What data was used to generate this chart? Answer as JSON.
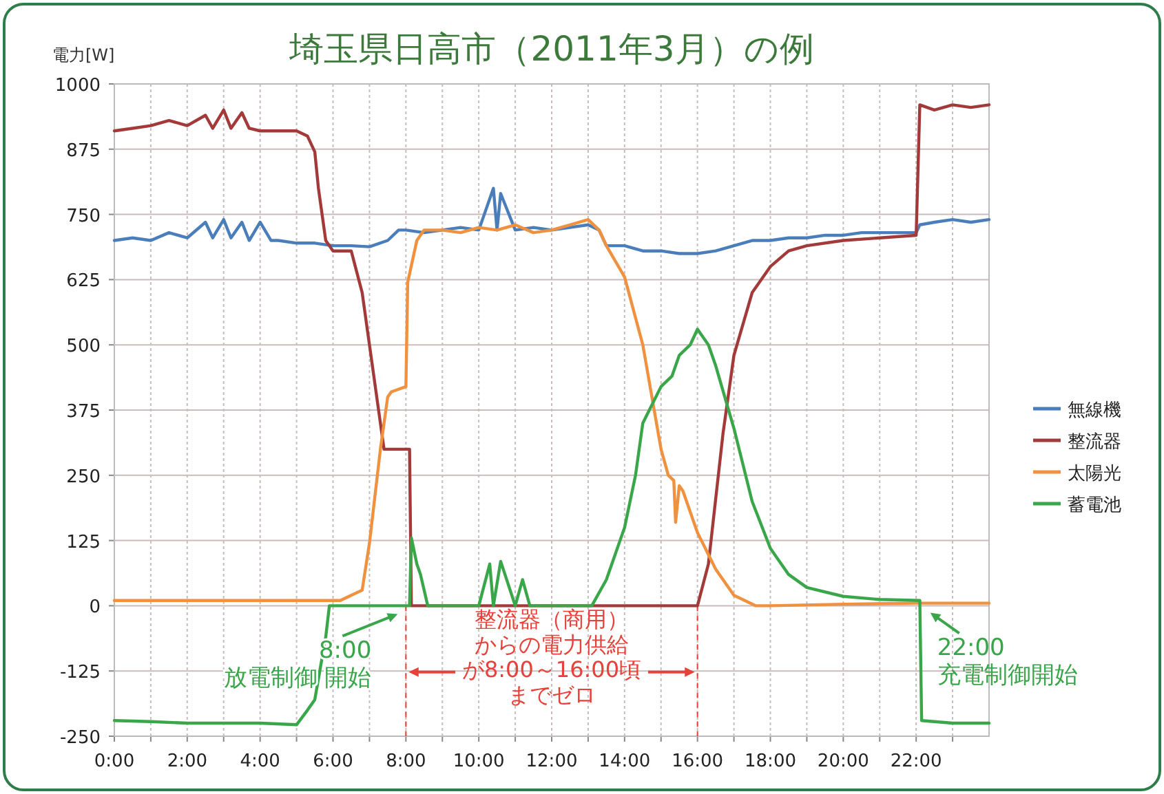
{
  "chart_data": {
    "type": "line",
    "title": "埼玉県日高市（2011年3月）の例",
    "ylabel": "電力[W]",
    "xlim": [
      0,
      24
    ],
    "ylim": [
      -250,
      1000
    ],
    "xticks": [
      {
        "value": 0,
        "label": "0:00"
      },
      {
        "value": 1,
        "label": null
      },
      {
        "value": 2,
        "label": "2:00"
      },
      {
        "value": 3,
        "label": null
      },
      {
        "value": 4,
        "label": "4:00"
      },
      {
        "value": 5,
        "label": null
      },
      {
        "value": 6,
        "label": "6:00"
      },
      {
        "value": 7,
        "label": null
      },
      {
        "value": 8,
        "label": "8:00"
      },
      {
        "value": 9,
        "label": null
      },
      {
        "value": 10,
        "label": "10:00"
      },
      {
        "value": 11,
        "label": null
      },
      {
        "value": 12,
        "label": "12:00"
      },
      {
        "value": 13,
        "label": null
      },
      {
        "value": 14,
        "label": "14:00"
      },
      {
        "value": 15,
        "label": null
      },
      {
        "value": 16,
        "label": "16:00"
      },
      {
        "value": 17,
        "label": null
      },
      {
        "value": 18,
        "label": "18:00"
      },
      {
        "value": 19,
        "label": null
      },
      {
        "value": 20,
        "label": "20:00"
      },
      {
        "value": 21,
        "label": null
      },
      {
        "value": 22,
        "label": "22:00"
      },
      {
        "value": 23,
        "label": null
      }
    ],
    "yticks": [
      -250,
      -125,
      0,
      125,
      250,
      375,
      500,
      625,
      750,
      875,
      1000
    ],
    "grid": true,
    "legend": "right",
    "line_style": "solid",
    "series": [
      {
        "name": "無線機",
        "color": "#4a7ebb",
        "x": [
          0,
          0.5,
          1,
          1.5,
          2,
          2.5,
          2.7,
          3,
          3.2,
          3.5,
          3.7,
          4,
          4.3,
          4.5,
          5,
          5.5,
          6,
          6.5,
          7,
          7.5,
          7.8,
          8,
          8.5,
          9,
          9.5,
          10,
          10.4,
          10.5,
          10.6,
          11,
          11.5,
          12,
          12.5,
          13,
          13.3,
          13.5,
          14,
          14.5,
          15,
          15.5,
          16,
          16.5,
          17,
          17.5,
          18,
          18.5,
          19,
          19.5,
          20,
          20.5,
          21,
          21.5,
          22,
          22.1,
          22.5,
          23,
          23.5,
          24
        ],
        "values": [
          700,
          705,
          700,
          715,
          705,
          735,
          705,
          740,
          705,
          735,
          700,
          735,
          700,
          700,
          695,
          695,
          690,
          690,
          688,
          700,
          720,
          720,
          715,
          720,
          725,
          720,
          800,
          720,
          790,
          720,
          725,
          720,
          725,
          730,
          720,
          690,
          690,
          680,
          680,
          675,
          675,
          680,
          690,
          700,
          700,
          705,
          705,
          710,
          710,
          715,
          715,
          715,
          715,
          730,
          735,
          740,
          735,
          740
        ]
      },
      {
        "name": "整流器",
        "color": "#a33a3a",
        "x": [
          0,
          0.5,
          1,
          1.5,
          2,
          2.5,
          2.7,
          3,
          3.2,
          3.5,
          3.7,
          4,
          4.3,
          4.5,
          5,
          5.3,
          5.5,
          5.6,
          5.8,
          6,
          6.5,
          6.8,
          7,
          7.3,
          7.4,
          8,
          8.1,
          8.15,
          16,
          16.3,
          16.7,
          17,
          17.5,
          18,
          18.5,
          19,
          20,
          21,
          22,
          22.1,
          22.5,
          23,
          23.5,
          24
        ],
        "values": [
          910,
          915,
          920,
          930,
          920,
          940,
          915,
          950,
          915,
          945,
          915,
          910,
          910,
          910,
          910,
          900,
          870,
          800,
          700,
          680,
          680,
          600,
          500,
          350,
          300,
          300,
          300,
          0,
          0,
          80,
          330,
          480,
          600,
          650,
          680,
          690,
          700,
          705,
          710,
          960,
          950,
          960,
          955,
          960
        ]
      },
      {
        "name": "太陽光",
        "color": "#f0913f",
        "x": [
          0,
          2,
          4,
          6,
          6.2,
          6.8,
          7,
          7.3,
          7.5,
          7.6,
          8,
          8.05,
          8.3,
          8.5,
          9,
          9.5,
          10,
          10.5,
          11,
          11.5,
          12,
          12.5,
          13,
          13.3,
          13.5,
          14,
          14.5,
          15,
          15.2,
          15.35,
          15.4,
          15.5,
          15.6,
          16,
          16.5,
          17,
          17.6,
          18,
          20,
          22,
          24
        ],
        "values": [
          10,
          10,
          10,
          10,
          10,
          30,
          120,
          300,
          400,
          410,
          420,
          620,
          700,
          720,
          720,
          715,
          725,
          720,
          730,
          715,
          720,
          730,
          740,
          720,
          690,
          630,
          500,
          300,
          250,
          240,
          160,
          230,
          220,
          140,
          70,
          20,
          0,
          0,
          3,
          5,
          5
        ]
      },
      {
        "name": "蓄電池",
        "color": "#3aa64a",
        "x": [
          0,
          1,
          2,
          3,
          4,
          5,
          5.3,
          5.5,
          5.7,
          5.8,
          5.9,
          6,
          7,
          8,
          8.1,
          8.15,
          8.3,
          8.4,
          8.6,
          9,
          10,
          10.3,
          10.4,
          10.6,
          11,
          11.2,
          11.4,
          12,
          13,
          13.1,
          13.5,
          14,
          14.3,
          14.5,
          15,
          15.3,
          15.5,
          15.8,
          16,
          16.3,
          16.5,
          17,
          17.5,
          18,
          18.5,
          19,
          20,
          21,
          22.1,
          22.15,
          23,
          24
        ],
        "values": [
          -220,
          -222,
          -225,
          -225,
          -225,
          -228,
          -200,
          -180,
          -100,
          -60,
          0,
          0,
          0,
          0,
          0,
          130,
          80,
          60,
          0,
          0,
          0,
          80,
          0,
          85,
          0,
          50,
          0,
          0,
          0,
          0,
          50,
          150,
          250,
          350,
          420,
          440,
          480,
          500,
          530,
          500,
          460,
          340,
          200,
          110,
          60,
          35,
          18,
          12,
          10,
          -220,
          -225,
          -225
        ]
      }
    ],
    "ref_lines": [
      {
        "axis": "x",
        "value": 8,
        "color": "#e8413a",
        "line_style": "dashed"
      },
      {
        "axis": "x",
        "value": 16,
        "color": "#e8413a",
        "line_style": "dashed"
      }
    ],
    "annotations": [
      {
        "text": "8:00\n放電制御 開始",
        "x": 8,
        "y": 0
      },
      "整流器（商用）",
      "からの電力供給",
      "が8:00～16:00頃",
      "までゼロ",
      {
        "text": "22:00\n充電制御開始",
        "x": 22.2,
        "y": 0
      }
    ]
  }
}
